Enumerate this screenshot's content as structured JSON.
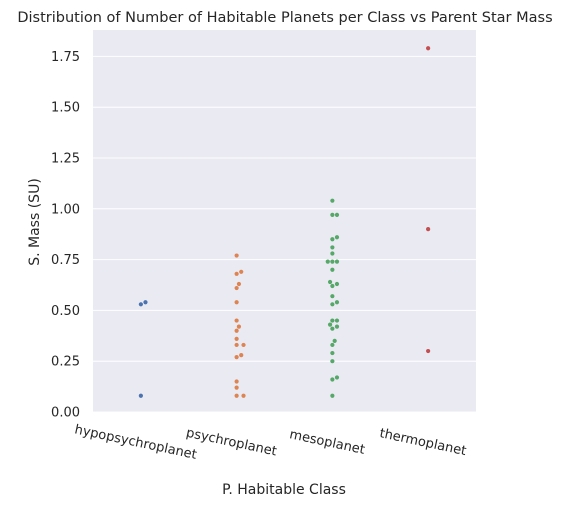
{
  "chart_data": {
    "type": "scatter",
    "subtype": "swarm",
    "title": "Distribution of Number of Habitable Planets per Class vs Parent Star Mass",
    "xlabel": "P. Habitable Class",
    "ylabel": "S. Mass (SU)",
    "ylim": [
      0,
      1.88
    ],
    "yticks": [
      "0.00",
      "0.25",
      "0.50",
      "0.75",
      "1.00",
      "1.25",
      "1.50",
      "1.75"
    ],
    "grid": true,
    "background": "#eaeaf2",
    "grid_color": "#ffffff",
    "categories": [
      "hypopsychroplanet",
      "psychroplanet",
      "mesoplanet",
      "thermoplanet"
    ],
    "series": [
      {
        "category": "hypopsychroplanet",
        "color": "#4c72b0",
        "values": [
          0.54,
          0.53,
          0.08
        ]
      },
      {
        "category": "psychroplanet",
        "color": "#dd8452",
        "values": [
          0.77,
          0.69,
          0.68,
          0.63,
          0.61,
          0.54,
          0.45,
          0.42,
          0.4,
          0.36,
          0.33,
          0.33,
          0.28,
          0.27,
          0.15,
          0.12,
          0.08,
          0.08
        ]
      },
      {
        "category": "mesoplanet",
        "color": "#55a868",
        "values": [
          1.04,
          0.97,
          0.97,
          0.86,
          0.85,
          0.81,
          0.78,
          0.74,
          0.74,
          0.74,
          0.7,
          0.64,
          0.63,
          0.62,
          0.57,
          0.54,
          0.53,
          0.45,
          0.45,
          0.43,
          0.42,
          0.41,
          0.35,
          0.33,
          0.29,
          0.25,
          0.17,
          0.16,
          0.08
        ]
      },
      {
        "category": "thermoplanet",
        "color": "#c44e52",
        "values": [
          1.79,
          0.9,
          0.3
        ]
      }
    ]
  }
}
